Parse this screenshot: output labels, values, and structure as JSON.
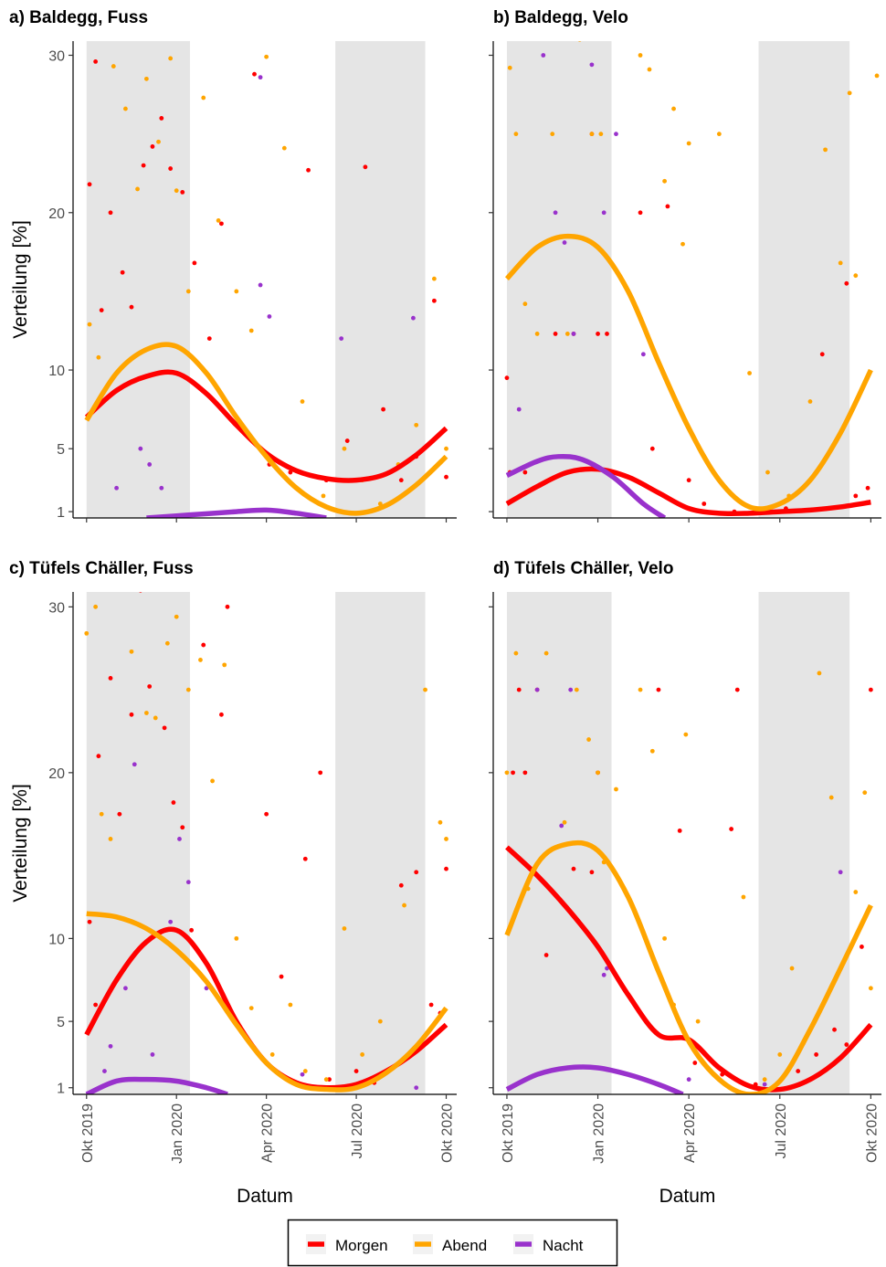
{
  "chart_data": [
    {
      "type": "scatter",
      "title": "a) Baldegg, Fuss",
      "ylabel": "Verteilung [%]",
      "xlim": [
        -0.45,
        12.35
      ],
      "ylim": [
        0.6,
        30.9
      ],
      "xticks": [
        0,
        3,
        6,
        9,
        12
      ],
      "yticks": [
        1,
        5,
        10,
        20,
        30
      ],
      "shaded": [
        [
          0,
          3.45
        ],
        [
          8.3,
          11.3
        ]
      ],
      "series": [
        {
          "color": "#ff0000",
          "x": [
            0.1,
            0.3,
            0.5,
            0.8,
            1.2,
            1.5,
            1.9,
            2.2,
            2.5,
            2.8,
            3.2,
            3.6,
            4.1,
            4.5,
            5.0,
            5.6,
            6.1,
            6.8,
            7.4,
            8.0,
            8.7,
            9.3,
            9.9,
            10.5,
            11.0,
            11.6,
            12.0
          ],
          "values": [
            21.8,
            29.6,
            13.8,
            20,
            16.2,
            14,
            23,
            24.2,
            26,
            22.8,
            21.3,
            16.8,
            12,
            19.3,
            7,
            28.8,
            4,
            3.5,
            22.7,
            3,
            5.5,
            22.9,
            7.5,
            3,
            4.5,
            14.4,
            3.2
          ]
        },
        {
          "color": "#ffa500",
          "x": [
            0.1,
            0.4,
            0.9,
            1.3,
            1.7,
            2.0,
            2.4,
            2.8,
            3.0,
            3.4,
            3.9,
            4.4,
            5.0,
            5.5,
            6.0,
            6.6,
            7.2,
            7.9,
            8.6,
            9.2,
            9.8,
            10.4,
            11.0,
            11.6,
            12.0
          ],
          "values": [
            12.9,
            10.8,
            29.3,
            26.6,
            21.5,
            28.5,
            24.5,
            29.8,
            21.4,
            15,
            27.3,
            19.5,
            15,
            12.5,
            29.9,
            24.1,
            8,
            2,
            5,
            3,
            1.5,
            4,
            6.5,
            15.8,
            5
          ]
        },
        {
          "color": "#9932cc",
          "x": [
            1.0,
            1.8,
            2.1,
            2.5,
            5.8,
            5.8,
            6.1,
            8.5,
            10.9
          ],
          "values": [
            2.5,
            5,
            4,
            2.5,
            15.4,
            28.6,
            13.4,
            12,
            13.3
          ]
        }
      ],
      "trend": [
        {
          "color": "#ff0000",
          "x": [
            0,
            1,
            2,
            3,
            4,
            5,
            6,
            7,
            8,
            9,
            10,
            11,
            12
          ],
          "values": [
            7,
            8.7,
            9.6,
            9.8,
            8.5,
            6.5,
            4.7,
            3.6,
            3.1,
            3,
            3.4,
            4.6,
            6.3
          ]
        },
        {
          "color": "#ffa500",
          "x": [
            0,
            1,
            2,
            3,
            4,
            5,
            6,
            7,
            8,
            9,
            10,
            11,
            12
          ],
          "values": [
            6.8,
            9.8,
            11.3,
            11.5,
            9.8,
            7,
            4.5,
            2.5,
            1.3,
            0.9,
            1.4,
            2.7,
            4.5
          ]
        },
        {
          "color": "#9932cc",
          "x": [
            2,
            3.5,
            5,
            6,
            7,
            8
          ],
          "values": [
            0.6,
            0.8,
            1.0,
            1.1,
            0.9,
            0.6
          ]
        }
      ]
    },
    {
      "type": "scatter",
      "title": "b) Baldegg, Velo",
      "xlim": [
        -0.45,
        12.35
      ],
      "ylim": [
        0.6,
        30.9
      ],
      "xticks": [
        0,
        3,
        6,
        9,
        12
      ],
      "yticks": [
        1,
        5,
        10,
        20,
        30
      ],
      "shaded": [
        [
          0,
          3.45
        ],
        [
          8.3,
          11.3
        ]
      ],
      "series": [
        {
          "color": "#ff0000",
          "x": [
            0.0,
            0.1,
            0.6,
            1.6,
            2.2,
            2.8,
            3.0,
            3.3,
            4.4,
            4.8,
            5.3,
            6.0,
            6.5,
            7.5,
            8.6,
            9.2,
            10.4,
            11.2,
            11.5,
            11.9
          ],
          "values": [
            9.5,
            3.5,
            3.5,
            12.3,
            12.3,
            25,
            12.3,
            12.3,
            20,
            5,
            20.4,
            3,
            1.5,
            1,
            1,
            1.2,
            11,
            15.5,
            2,
            2.5
          ]
        },
        {
          "color": "#ffa500",
          "x": [
            0.1,
            0.3,
            0.6,
            1.0,
            1.5,
            2.0,
            2.4,
            2.8,
            3.1,
            4.4,
            4.7,
            5.2,
            5.5,
            5.8,
            6.0,
            7.0,
            8.0,
            8.6,
            9.3,
            10.0,
            10.5,
            11.0,
            11.3,
            11.5,
            12.2
          ],
          "values": [
            29.2,
            25,
            14.2,
            12.3,
            25,
            12.3,
            31,
            25,
            25,
            30,
            29.1,
            22,
            26.6,
            18,
            24.4,
            25,
            9.8,
            3.5,
            2,
            8,
            24,
            16.8,
            27.6,
            16,
            28.7
          ]
        },
        {
          "color": "#9932cc",
          "x": [
            0.4,
            1.2,
            1.6,
            1.9,
            2.2,
            2.8,
            3.2,
            3.6,
            4.5
          ],
          "values": [
            7.5,
            30,
            20,
            18.1,
            12.3,
            29.4,
            20,
            25,
            11
          ]
        }
      ],
      "trend": [
        {
          "color": "#ff0000",
          "x": [
            0,
            1,
            2,
            3,
            4,
            5,
            6,
            7,
            8,
            9,
            10,
            11,
            12
          ],
          "values": [
            1.5,
            2.6,
            3.5,
            3.7,
            3.2,
            2.2,
            1.2,
            0.9,
            0.9,
            1,
            1.1,
            1.3,
            1.6
          ]
        },
        {
          "color": "#ffa500",
          "x": [
            0,
            1,
            2,
            3,
            4,
            5,
            6,
            7,
            8,
            9,
            10,
            11,
            12
          ],
          "values": [
            15.8,
            17.8,
            18.5,
            17.8,
            15,
            10.5,
            6.3,
            3,
            1.3,
            1.5,
            3,
            6,
            10
          ]
        },
        {
          "color": "#9932cc",
          "x": [
            0,
            1,
            1.7,
            2.5,
            3.5,
            4.5,
            5.2
          ],
          "values": [
            3.3,
            4.2,
            4.5,
            4.3,
            3.2,
            1.5,
            0.6
          ]
        }
      ]
    },
    {
      "type": "scatter",
      "title": "c) Tüfels Chäller, Fuss",
      "ylabel": "Verteilung [%]",
      "xlabel": "Datum",
      "xlim": [
        -0.45,
        12.35
      ],
      "ylim": [
        0.6,
        30.9
      ],
      "xticks": [
        {
          "value": 0,
          "label": "Okt 2019"
        },
        {
          "value": 3,
          "label": "Jan 2020"
        },
        {
          "value": 6,
          "label": "Apr 2020"
        },
        {
          "value": 9,
          "label": "Jul 2020"
        },
        {
          "value": 12,
          "label": "Okt 2020"
        }
      ],
      "yticks": [
        1,
        5,
        10,
        20,
        30
      ],
      "shaded": [
        [
          0,
          3.45
        ],
        [
          8.3,
          11.3
        ]
      ],
      "series": [
        {
          "color": "#ff0000",
          "x": [
            0.1,
            0.3,
            0.4,
            0.8,
            1.1,
            1.5,
            1.8,
            2.1,
            2.6,
            2.9,
            3.2,
            3.5,
            3.9,
            4.5,
            4.7,
            6.0,
            6.5,
            7.3,
            7.8,
            8.1,
            9.0,
            9.6,
            10.5,
            11.0,
            11.5,
            11.8,
            12.0
          ],
          "values": [
            11,
            6,
            21,
            25.7,
            17.5,
            23.5,
            31,
            25.2,
            22.7,
            18.2,
            16.7,
            10.5,
            27.7,
            23.5,
            30,
            17.5,
            7.7,
            14.8,
            20,
            1.5,
            2,
            1.3,
            13.2,
            14,
            6,
            5.5,
            14.2
          ]
        },
        {
          "color": "#ffa500",
          "x": [
            0.0,
            0.3,
            0.5,
            0.8,
            1.2,
            1.5,
            2.0,
            2.3,
            2.7,
            3.0,
            3.4,
            3.8,
            4.2,
            4.6,
            5.0,
            5.5,
            6.2,
            6.8,
            7.3,
            8.0,
            8.6,
            9.2,
            9.8,
            10.6,
            11.3,
            11.8,
            12.0
          ],
          "values": [
            28.4,
            30,
            17.5,
            16,
            31.2,
            27.3,
            23.6,
            23.3,
            27.8,
            29.4,
            25,
            26.8,
            19.5,
            26.5,
            10,
            5.8,
            3,
            6,
            2,
            1.5,
            10.6,
            3,
            5,
            12,
            25,
            17,
            16
          ]
        },
        {
          "color": "#9932cc",
          "x": [
            0.6,
            0.8,
            1.3,
            1.6,
            2.2,
            2.8,
            3.1,
            3.4,
            4.0,
            7.2,
            11.0
          ],
          "values": [
            2,
            3.5,
            7,
            20.5,
            3,
            11,
            16,
            13.4,
            7,
            1.8,
            1
          ]
        }
      ],
      "trend": [
        {
          "color": "#ff0000",
          "x": [
            0,
            1,
            2,
            3,
            4,
            5,
            6,
            7,
            8,
            9,
            10,
            11,
            12
          ],
          "values": [
            4.2,
            7.5,
            9.8,
            10.5,
            8.5,
            5,
            2.5,
            1.3,
            1,
            1.2,
            2,
            3.2,
            4.8
          ]
        },
        {
          "color": "#ffa500",
          "x": [
            0,
            1,
            2,
            3,
            4,
            5,
            6,
            7,
            8,
            9,
            10,
            11,
            12
          ],
          "values": [
            11.5,
            11.3,
            10.6,
            9.3,
            7.4,
            4.8,
            2.5,
            1.2,
            0.9,
            1,
            1.9,
            3.5,
            5.8
          ]
        },
        {
          "color": "#9932cc",
          "x": [
            0,
            1,
            2,
            3,
            4,
            4.7
          ],
          "values": [
            0.6,
            1.4,
            1.5,
            1.4,
            1,
            0.6
          ]
        }
      ]
    },
    {
      "type": "scatter",
      "title": "d) Tüfels Chäller, Velo",
      "xlabel": "Datum",
      "xlim": [
        -0.45,
        12.35
      ],
      "ylim": [
        0.6,
        30.9
      ],
      "xticks": [
        {
          "value": 0,
          "label": "Okt 2019"
        },
        {
          "value": 3,
          "label": "Jan 2020"
        },
        {
          "value": 6,
          "label": "Apr 2020"
        },
        {
          "value": 9,
          "label": "Jul 2020"
        },
        {
          "value": 12,
          "label": "Okt 2020"
        }
      ],
      "yticks": [
        1,
        5,
        10,
        20,
        30
      ],
      "shaded": [
        [
          0,
          3.45
        ],
        [
          8.3,
          11.3
        ]
      ],
      "series": [
        {
          "color": "#ff0000",
          "x": [
            0.2,
            0.4,
            0.6,
            1.0,
            1.3,
            2.2,
            2.8,
            3.0,
            5.0,
            5.7,
            6.2,
            7.1,
            7.4,
            7.6,
            8.2,
            9.0,
            9.6,
            10.2,
            10.8,
            11.2,
            11.7,
            12.0
          ],
          "values": [
            20,
            25,
            20,
            25,
            9,
            14.2,
            14,
            20,
            25,
            16.5,
            2.5,
            1.8,
            16.6,
            25,
            1.2,
            1.4,
            2,
            3,
            4.5,
            3.6,
            9.5,
            25
          ]
        },
        {
          "color": "#ffa500",
          "x": [
            0.0,
            0.3,
            0.7,
            1.3,
            1.9,
            2.3,
            2.7,
            3.0,
            3.2,
            3.6,
            4.4,
            4.8,
            5.2,
            5.5,
            5.9,
            6.3,
            7.0,
            7.8,
            8.5,
            9.0,
            9.4,
            10.3,
            10.7,
            11.2,
            11.5,
            11.8,
            12.0
          ],
          "values": [
            20,
            27.2,
            13,
            27.2,
            17,
            25,
            22,
            20,
            14.6,
            19,
            25,
            21.3,
            10,
            6,
            22.3,
            5,
            1.5,
            12.5,
            1.5,
            3,
            8.2,
            26,
            18.5,
            31.2,
            12.8,
            18.8,
            7
          ]
        },
        {
          "color": "#9932cc",
          "x": [
            1.0,
            1.8,
            2.1,
            3.2,
            3.3,
            6.0,
            8.5,
            11.0
          ],
          "values": [
            25,
            16.8,
            25,
            7.8,
            8.2,
            1.5,
            1.2,
            14
          ]
        }
      ],
      "trend": [
        {
          "color": "#ff0000",
          "x": [
            0,
            1,
            2,
            3,
            4,
            5,
            6,
            7,
            8,
            9,
            10,
            11,
            12
          ],
          "values": [
            15.5,
            13.8,
            11.8,
            9.5,
            6.6,
            4.2,
            3.9,
            2.2,
            1.1,
            0.9,
            1.5,
            2.8,
            4.8
          ]
        },
        {
          "color": "#ffa500",
          "x": [
            0,
            1,
            2,
            3,
            4,
            5,
            6,
            7,
            8,
            9,
            10,
            11,
            12
          ],
          "values": [
            10.2,
            14.5,
            15.7,
            15.3,
            12.5,
            8,
            3.8,
            1.5,
            0.6,
            1.4,
            4.5,
            8.2,
            12
          ]
        },
        {
          "color": "#9932cc",
          "x": [
            0,
            1,
            2,
            3,
            4,
            5,
            5.8
          ],
          "values": [
            0.9,
            1.8,
            2.2,
            2.2,
            1.8,
            1.2,
            0.6
          ]
        }
      ]
    }
  ],
  "legend": {
    "position": "bottom",
    "entries": [
      {
        "name": "Morgen",
        "color": "#ff0000"
      },
      {
        "name": "Abend",
        "color": "#ffa500"
      },
      {
        "name": "Nacht",
        "color": "#9932cc"
      }
    ]
  }
}
